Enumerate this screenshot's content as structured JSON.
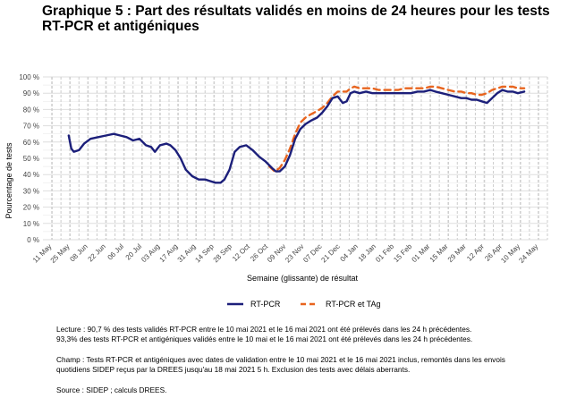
{
  "title": "Graphique 5 : Part des résultats validés en moins de 24 heures pour les tests RT-PCR et antigéniques",
  "notes": {
    "lecture_1": "Lecture : 90,7 % des tests validés RT-PCR entre le 10 mai 2021 et le 16 mai 2021 ont été prélevés dans les 24 h précédentes.",
    "lecture_2": "93,3% des tests RT-PCR et antigéniques validés entre le 10 mai et le 16 mai 2021 ont été prélevés dans les 24 h précédentes.",
    "champ_1": "Champ : Tests RT-PCR et antigéniques avec dates de validation entre le 10 mai 2021 et le 16 mai 2021 inclus, remontés dans les envois",
    "champ_2": "quotidiens SIDEP reçus par la DREES jusqu'au 18 mai 2021 5 h. Exclusion des tests avec délais aberrants.",
    "source": "Source : SIDEP ; calculs DREES."
  },
  "chart_data": {
    "type": "line",
    "title": "Graphique 5 : Part des résultats validés en moins de 24 heures pour les tests RT-PCR et antigéniques",
    "xlabel": "Semaine (glissante) de résultat",
    "ylabel": "Pourcentage de tests",
    "ylim": [
      0,
      100
    ],
    "yticks": [
      "0 %",
      "10 %",
      "20 %",
      "30 %",
      "40 %",
      "50 %",
      "60 %",
      "70 %",
      "80 %",
      "90 %",
      "100 %"
    ],
    "xticks": [
      "11 May",
      "25 May",
      "08 Jun",
      "22 Jun",
      "06 Jul",
      "20 Jul",
      "03 Aug",
      "17 Aug",
      "31 Aug",
      "14 Sep",
      "28 Sep",
      "12 Oct",
      "26 Oct",
      "09 Nov",
      "23 Nov",
      "07 Dec",
      "21 Dec",
      "04 Jan",
      "18 Jan",
      "01 Feb",
      "15 Feb",
      "01 Mar",
      "15 Mar",
      "29 Mar",
      "12 Apr",
      "26 Apr",
      "10 May",
      "24 May"
    ],
    "grid": true,
    "legend_position": "bottom",
    "series": [
      {
        "name": "RT-PCR",
        "color": "#1c1f7a",
        "dash": "solid",
        "x": [
          "2020-05-24",
          "2020-05-26",
          "2020-05-28",
          "2020-06-01",
          "2020-06-05",
          "2020-06-10",
          "2020-06-16",
          "2020-06-22",
          "2020-06-28",
          "2020-07-03",
          "2020-07-08",
          "2020-07-13",
          "2020-07-18",
          "2020-07-23",
          "2020-07-27",
          "2020-07-30",
          "2020-08-03",
          "2020-08-08",
          "2020-08-11",
          "2020-08-15",
          "2020-08-19",
          "2020-08-23",
          "2020-08-28",
          "2020-09-02",
          "2020-09-07",
          "2020-09-11",
          "2020-09-15",
          "2020-09-19",
          "2020-09-22",
          "2020-09-26",
          "2020-09-30",
          "2020-10-04",
          "2020-10-09",
          "2020-10-14",
          "2020-10-19",
          "2020-10-24",
          "2020-10-29",
          "2020-11-01",
          "2020-11-04",
          "2020-11-08",
          "2020-11-12",
          "2020-11-16",
          "2020-11-20",
          "2020-11-24",
          "2020-11-28",
          "2020-12-03",
          "2020-12-07",
          "2020-12-11",
          "2020-12-15",
          "2020-12-19",
          "2020-12-23",
          "2020-12-26",
          "2020-12-29",
          "2021-01-01",
          "2021-01-05",
          "2021-01-10",
          "2021-01-15",
          "2021-01-20",
          "2021-01-25",
          "2021-01-30",
          "2021-02-04",
          "2021-02-09",
          "2021-02-14",
          "2021-02-19",
          "2021-02-24",
          "2021-03-01",
          "2021-03-05",
          "2021-03-10",
          "2021-03-15",
          "2021-03-20",
          "2021-03-25",
          "2021-03-29",
          "2021-04-02",
          "2021-04-06",
          "2021-04-10",
          "2021-04-14",
          "2021-04-18",
          "2021-04-22",
          "2021-04-26",
          "2021-04-30",
          "2021-05-04",
          "2021-05-08",
          "2021-05-13"
        ],
        "values": [
          64,
          56,
          54,
          55,
          59,
          62,
          63,
          64,
          65,
          64,
          63,
          61,
          62,
          58,
          57,
          54,
          58,
          59,
          58,
          55,
          50,
          43,
          39,
          37,
          37,
          36,
          35,
          35,
          37,
          43,
          54,
          57,
          58,
          55,
          51,
          48,
          44,
          42,
          42,
          45,
          52,
          62,
          68,
          71,
          73,
          75,
          78,
          82,
          87,
          88,
          84,
          85,
          90,
          91,
          90,
          91,
          90,
          90,
          90,
          90,
          90,
          90,
          90,
          91,
          91,
          92,
          91,
          90,
          89,
          88,
          87,
          87,
          86,
          86,
          85,
          84,
          87,
          90,
          92,
          91,
          91,
          90,
          91
        ]
      },
      {
        "name": "RT-PCR et TAg",
        "color": "#e8641e",
        "dash": "dashed",
        "x": [
          "2020-10-27",
          "2020-10-31",
          "2020-11-04",
          "2020-11-08",
          "2020-11-12",
          "2020-11-16",
          "2020-11-20",
          "2020-11-24",
          "2020-11-28",
          "2020-12-03",
          "2020-12-07",
          "2020-12-11",
          "2020-12-15",
          "2020-12-19",
          "2020-12-23",
          "2020-12-26",
          "2020-12-29",
          "2021-01-01",
          "2021-01-05",
          "2021-01-10",
          "2021-01-15",
          "2021-01-20",
          "2021-01-25",
          "2021-01-30",
          "2021-02-04",
          "2021-02-09",
          "2021-02-14",
          "2021-02-19",
          "2021-02-24",
          "2021-03-01",
          "2021-03-05",
          "2021-03-10",
          "2021-03-15",
          "2021-03-20",
          "2021-03-25",
          "2021-03-29",
          "2021-04-02",
          "2021-04-06",
          "2021-04-10",
          "2021-04-14",
          "2021-04-18",
          "2021-04-22",
          "2021-04-26",
          "2021-04-30",
          "2021-05-04",
          "2021-05-08",
          "2021-05-13"
        ],
        "values": [
          45,
          42,
          44,
          49,
          56,
          65,
          72,
          75,
          77,
          79,
          81,
          84,
          88,
          91,
          91,
          91,
          93,
          94,
          93,
          93,
          93,
          92,
          92,
          92,
          92,
          93,
          93,
          93,
          93,
          94,
          94,
          93,
          92,
          91,
          91,
          90,
          90,
          89,
          89,
          90,
          92,
          93,
          94,
          94,
          94,
          93,
          93
        ]
      }
    ]
  }
}
